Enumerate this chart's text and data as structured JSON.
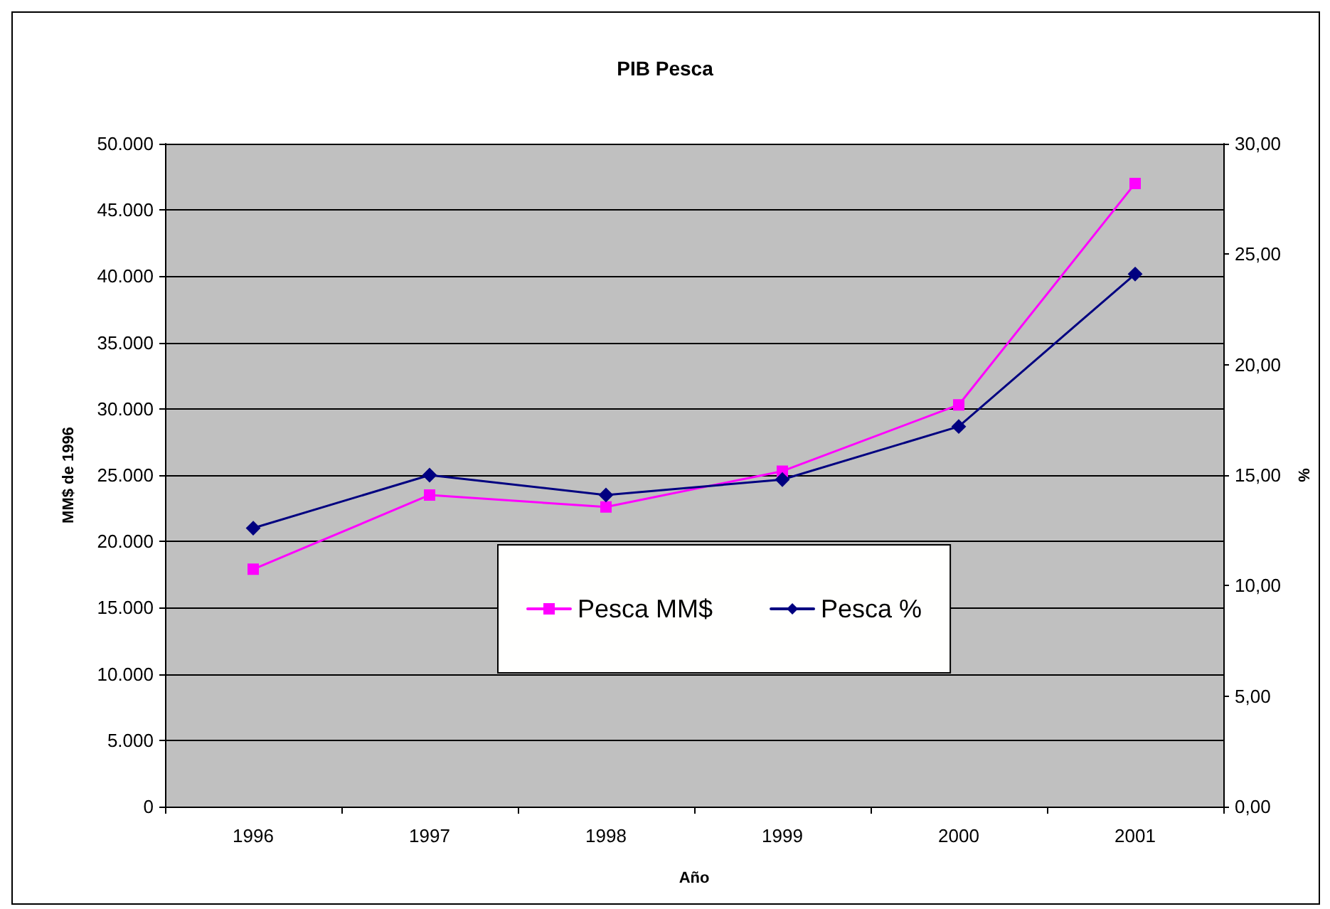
{
  "chart_data": {
    "type": "line",
    "title": "PIB Pesca",
    "xlabel": "Año",
    "ylabel": "MM$ de 1996",
    "y2label": "%",
    "categories": [
      "1996",
      "1997",
      "1998",
      "1999",
      "2000",
      "2001"
    ],
    "series": [
      {
        "name": "Pesca MM$",
        "color": "#ff00ff",
        "marker": "square",
        "values": [
          17900,
          23500,
          22600,
          25300,
          30300,
          47000
        ]
      },
      {
        "name": "Pesca %",
        "color": "#000080",
        "marker": "diamond",
        "axis": "y2",
        "values": [
          12.6,
          15.0,
          14.1,
          14.8,
          17.2,
          24.1
        ]
      }
    ],
    "ylim": [
      0,
      50000
    ],
    "yticks": [
      {
        "value": 0,
        "label": "0"
      },
      {
        "value": 5000,
        "label": "5.000"
      },
      {
        "value": 10000,
        "label": "10.000"
      },
      {
        "value": 15000,
        "label": "15.000"
      },
      {
        "value": 20000,
        "label": "20.000"
      },
      {
        "value": 25000,
        "label": "25.000"
      },
      {
        "value": 30000,
        "label": "30.000"
      },
      {
        "value": 35000,
        "label": "35.000"
      },
      {
        "value": 40000,
        "label": "40.000"
      },
      {
        "value": 45000,
        "label": "45.000"
      },
      {
        "value": 50000,
        "label": "50.000"
      }
    ],
    "y2lim": [
      0,
      30
    ],
    "y2ticks": [
      {
        "value": 0,
        "label": "0,00"
      },
      {
        "value": 5,
        "label": "5,00"
      },
      {
        "value": 10,
        "label": "10,00"
      },
      {
        "value": 15,
        "label": "15,00"
      },
      {
        "value": 20,
        "label": "20,00"
      },
      {
        "value": 25,
        "label": "25,00"
      },
      {
        "value": 30,
        "label": "30,00"
      }
    ],
    "grid": "y",
    "legend": "bottom",
    "line_style": "solid"
  }
}
